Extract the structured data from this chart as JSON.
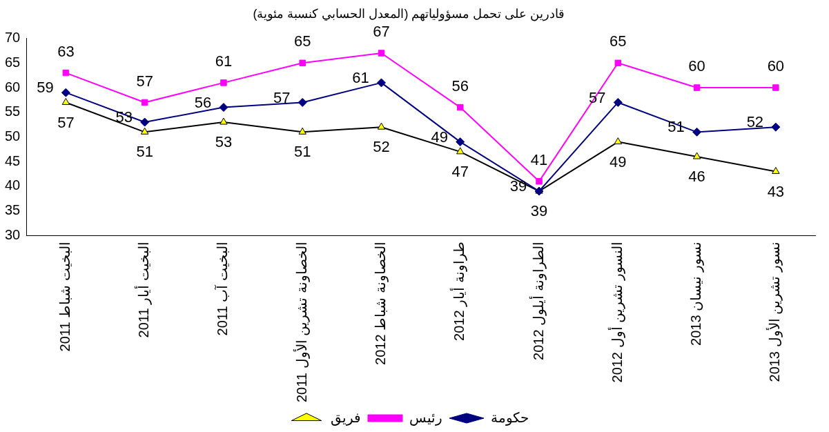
{
  "chart_data": {
    "type": "line",
    "title": "قادرين على تحمل مسؤولياتهم (المعدل الحسابي كنسبة مئوية)",
    "categories": [
      "البخيت شباط 2011",
      "البخيت أيار 2011",
      "البخيت آب 2011",
      "الخصاونة تشرين الأول 2011",
      "الخصاونة شباط 2012",
      "طراونة أيار 2012",
      "الطراونة أيلول 2012",
      "النسور تشرين أول 2012",
      "نسور نيسان 2013",
      "نسور تشرين الأول 2013"
    ],
    "series": [
      {
        "name": "حكومة",
        "color": "#000080",
        "marker": "diamond",
        "values": [
          59,
          53,
          56,
          57,
          61,
          49,
          39,
          57,
          51,
          52
        ]
      },
      {
        "name": "رئيس",
        "color": "#ff00ff",
        "marker": "square",
        "values": [
          63,
          57,
          61,
          65,
          67,
          56,
          41,
          65,
          60,
          60
        ]
      },
      {
        "name": "فريق",
        "color": "#000000",
        "marker": "triangle",
        "values": [
          57,
          51,
          53,
          51,
          52,
          47,
          39,
          49,
          46,
          43
        ]
      }
    ],
    "ylim": [
      30,
      70
    ],
    "yticks": [
      30,
      35,
      40,
      45,
      50,
      55,
      60,
      65,
      70
    ],
    "grid": false,
    "legend": "bottom",
    "data_labels": true,
    "line_style": "solid"
  }
}
